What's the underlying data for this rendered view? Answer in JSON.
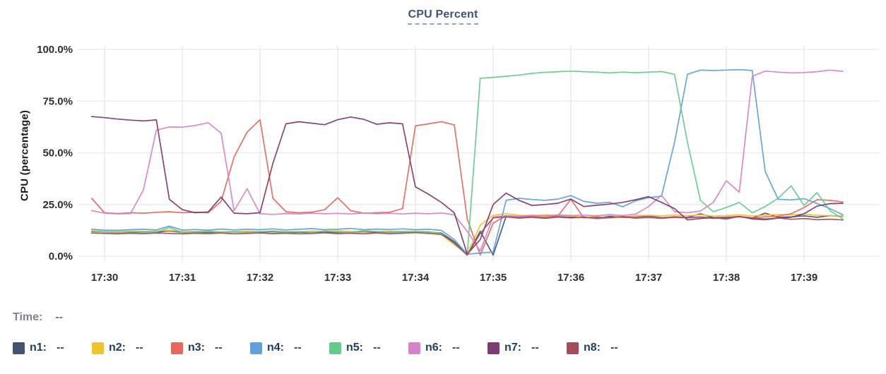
{
  "time_row": {
    "label": "Time:",
    "value": "--"
  },
  "theme": {
    "background": "#ffffff",
    "title_color": "#3d5379",
    "title_underline": "#8fa3cf",
    "grid_color": "#e8e9eb",
    "axis_text_color": "#2f2f2f",
    "legend_text_color": "#1f3a5f",
    "muted_text_color": "#7e838c"
  },
  "chart_data": {
    "type": "line",
    "title": "CPU Percent",
    "xlabel": "",
    "ylabel": "CPU (percentage)",
    "ylim": [
      0,
      100
    ],
    "grid": true,
    "legend_position": "bottom",
    "y_ticks": [
      0,
      25,
      50,
      75,
      100
    ],
    "y_tick_labels": [
      "0.0%",
      "25.0%",
      "50.0%",
      "75.0%",
      "100.0%"
    ],
    "x_ticks_seconds": [
      0,
      60,
      120,
      180,
      240,
      300,
      360,
      420,
      480,
      540
    ],
    "x_tick_labels": [
      "17:30",
      "17:31",
      "17:32",
      "17:33",
      "17:34",
      "17:35",
      "17:36",
      "17:37",
      "17:38",
      "17:39"
    ],
    "x_seconds": [
      -10,
      0,
      10,
      20,
      30,
      40,
      50,
      60,
      70,
      80,
      90,
      100,
      110,
      120,
      130,
      140,
      150,
      160,
      170,
      180,
      190,
      200,
      210,
      220,
      230,
      240,
      250,
      260,
      270,
      280,
      290,
      300,
      310,
      320,
      330,
      340,
      350,
      360,
      370,
      380,
      390,
      400,
      410,
      420,
      430,
      440,
      450,
      460,
      470,
      480,
      490,
      500,
      510,
      520,
      530,
      540,
      550,
      560,
      570
    ],
    "series": [
      {
        "name": "n1",
        "color": "#44546F",
        "value": "--",
        "values": [
          11.9,
          11.7,
          11.6,
          11.5,
          11.7,
          11.6,
          12.2,
          11.5,
          11.4,
          11.6,
          11.5,
          11.7,
          11.5,
          11.6,
          11.8,
          11.5,
          11.6,
          11.4,
          11.7,
          11.5,
          11.6,
          11.8,
          11.5,
          11.6,
          11.7,
          12.0,
          11.6,
          11.2,
          7.0,
          0.5,
          12.0,
          0.5,
          19.3,
          18.8,
          19.0,
          18.6,
          19.1,
          18.8,
          19.0,
          18.5,
          19.2,
          18.7,
          18.9,
          19.4,
          18.6,
          19.0,
          18.8,
          20.5,
          18.6,
          18.9,
          19.1,
          18.5,
          20.8,
          18.8,
          19.0,
          19.5,
          18.8,
          19.6,
          19.3
        ]
      },
      {
        "name": "n2",
        "color": "#F0C330",
        "value": "--",
        "values": [
          12.3,
          12.0,
          11.9,
          12.1,
          12.0,
          12.2,
          12.5,
          11.9,
          12.0,
          12.2,
          11.8,
          12.0,
          12.1,
          11.9,
          12.2,
          12.0,
          11.8,
          12.1,
          12.0,
          12.3,
          11.9,
          12.1,
          12.0,
          12.2,
          11.9,
          12.1,
          11.8,
          10.5,
          5.5,
          1.0,
          15.0,
          19.8,
          20.5,
          19.8,
          19.5,
          20.0,
          19.6,
          19.9,
          18.5,
          19.7,
          19.9,
          18.8,
          19.6,
          19.8,
          19.5,
          19.9,
          19.6,
          20.0,
          19.4,
          19.7,
          20.0,
          19.5,
          19.8,
          20.2,
          20.0,
          20.3,
          19.8,
          19.6,
          19.5
        ]
      },
      {
        "name": "n3",
        "color": "#E5695F",
        "value": "--",
        "values": [
          28.0,
          21.0,
          20.6,
          21.0,
          20.8,
          21.2,
          21.5,
          21.0,
          21.3,
          21.0,
          26.5,
          48.0,
          60.0,
          66.0,
          28.0,
          21.5,
          21.0,
          21.3,
          22.5,
          28.3,
          22.0,
          20.8,
          21.0,
          21.2,
          23.0,
          63.0,
          64.0,
          65.0,
          63.5,
          18.0,
          0.5,
          16.0,
          19.5,
          19.0,
          19.3,
          18.8,
          19.5,
          27.5,
          18.5,
          19.0,
          18.6,
          19.2,
          18.8,
          19.0,
          18.5,
          19.1,
          18.7,
          19.0,
          18.4,
          18.8,
          19.2,
          18.6,
          19.0,
          19.4,
          20.5,
          23.5,
          27.3,
          27.0,
          26.2
        ]
      },
      {
        "name": "n4",
        "color": "#61A0D8",
        "value": "--",
        "values": [
          13.0,
          12.6,
          12.5,
          12.8,
          13.0,
          12.7,
          14.5,
          12.6,
          12.9,
          12.6,
          13.1,
          12.7,
          13.0,
          12.8,
          13.2,
          12.7,
          13.0,
          13.3,
          12.8,
          13.0,
          13.4,
          12.8,
          13.1,
          12.9,
          13.2,
          12.8,
          13.0,
          12.5,
          8.0,
          1.0,
          1.5,
          2.0,
          27.0,
          28.0,
          27.4,
          27.0,
          27.6,
          29.3,
          26.5,
          25.6,
          26.0,
          23.9,
          26.8,
          28.3,
          29.0,
          55.0,
          88.0,
          90.0,
          89.8,
          90.0,
          90.2,
          89.8,
          41.0,
          27.5,
          27.2,
          27.8,
          25.5,
          23.0,
          20.0
        ]
      },
      {
        "name": "n5",
        "color": "#65CB8B",
        "value": "--",
        "values": [
          12.0,
          11.6,
          11.4,
          11.7,
          11.9,
          11.6,
          13.8,
          11.4,
          11.6,
          11.9,
          11.5,
          11.7,
          11.4,
          11.8,
          12.1,
          11.6,
          11.9,
          11.5,
          12.2,
          11.7,
          11.4,
          12.4,
          11.8,
          11.5,
          11.9,
          11.6,
          11.8,
          11.0,
          6.0,
          0.5,
          86.0,
          86.5,
          87.0,
          87.6,
          88.4,
          88.9,
          89.2,
          89.5,
          89.2,
          89.0,
          88.6,
          89.0,
          88.7,
          89.0,
          89.3,
          88.0,
          55.0,
          27.0,
          21.5,
          23.5,
          26.0,
          21.0,
          24.0,
          28.0,
          34.0,
          24.5,
          30.7,
          22.0,
          18.0
        ]
      },
      {
        "name": "n6",
        "color": "#D584C9",
        "value": "--",
        "values": [
          22.0,
          20.8,
          20.4,
          20.6,
          32.0,
          61.0,
          62.5,
          62.4,
          63.2,
          64.5,
          59.5,
          22.0,
          32.6,
          20.5,
          20.2,
          20.6,
          20.4,
          20.8,
          20.5,
          20.7,
          20.4,
          20.9,
          20.5,
          20.7,
          20.4,
          20.8,
          20.5,
          20.9,
          20.0,
          12.0,
          2.5,
          19.0,
          19.6,
          19.3,
          19.8,
          19.5,
          20.0,
          19.6,
          19.9,
          19.5,
          20.1,
          19.7,
          20.3,
          24.0,
          29.5,
          21.5,
          21.0,
          21.8,
          26.0,
          36.5,
          31.0,
          87.0,
          89.5,
          89.0,
          88.6,
          88.8,
          89.2,
          90.0,
          89.4
        ]
      },
      {
        "name": "n7",
        "color": "#7D3C72",
        "value": "--",
        "values": [
          67.5,
          67.0,
          66.3,
          65.8,
          65.4,
          65.9,
          27.5,
          22.5,
          21.0,
          21.4,
          28.6,
          20.8,
          20.5,
          21.0,
          45.0,
          64.0,
          65.0,
          64.3,
          63.6,
          66.0,
          67.3,
          66.2,
          63.8,
          64.5,
          64.0,
          33.5,
          30.0,
          26.0,
          21.0,
          1.0,
          8.0,
          25.0,
          30.5,
          27.0,
          24.5,
          25.0,
          25.6,
          27.6,
          24.0,
          24.6,
          25.2,
          26.0,
          27.3,
          28.8,
          26.0,
          23.0,
          17.5,
          18.2,
          18.6,
          18.0,
          19.2,
          18.0,
          17.6,
          18.4,
          18.8,
          20.5,
          24.2,
          25.4,
          25.6
        ]
      },
      {
        "name": "n8",
        "color": "#A34D5C",
        "value": "--",
        "values": [
          11.2,
          11.0,
          10.8,
          11.1,
          10.9,
          11.2,
          11.0,
          10.8,
          11.1,
          10.9,
          11.2,
          10.8,
          11.0,
          11.2,
          10.9,
          11.1,
          10.8,
          11.0,
          11.3,
          10.9,
          11.1,
          10.8,
          11.2,
          10.9,
          11.1,
          11.4,
          11.0,
          10.5,
          6.5,
          0.5,
          11.0,
          18.5,
          19.0,
          18.4,
          18.8,
          18.3,
          18.9,
          18.5,
          18.8,
          18.2,
          18.6,
          19.0,
          18.4,
          18.7,
          18.3,
          18.8,
          18.5,
          18.9,
          18.3,
          18.6,
          19.0,
          18.4,
          18.0,
          18.5,
          17.8,
          18.2,
          17.6,
          17.9,
          17.5
        ]
      }
    ]
  }
}
